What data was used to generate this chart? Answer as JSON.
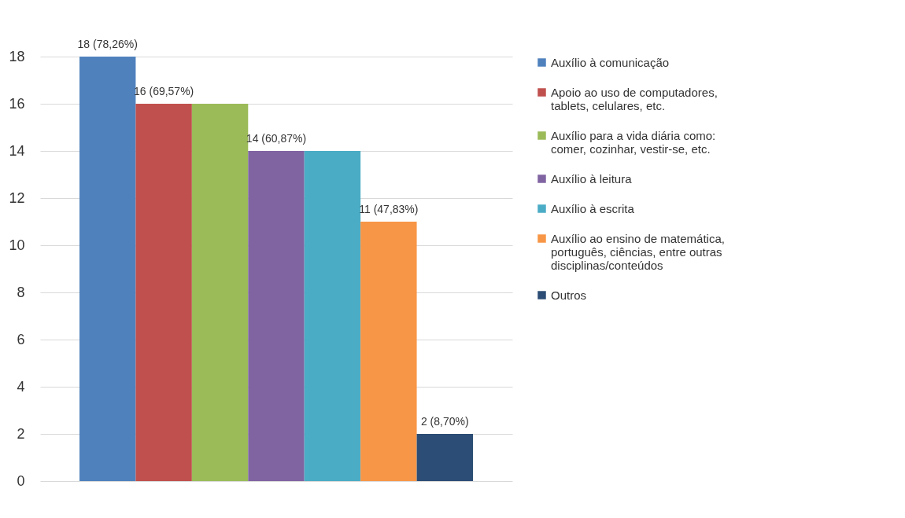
{
  "chart_data": {
    "type": "bar",
    "categories": [
      null
    ],
    "series": [
      {
        "name": "Auxílio à comunicação",
        "color": "#4f81bd",
        "values": [
          18
        ],
        "value_labels": [
          "18 (78,26%)"
        ]
      },
      {
        "name": "Apoio ao uso de computadores, tablets, celulares, etc.",
        "color": "#c0504d",
        "values": [
          16
        ],
        "value_labels": [
          "16 (69,57%)"
        ]
      },
      {
        "name": "Auxílio para a vida diária como: comer, cozinhar, vestir-se, etc.",
        "color": "#9bbb59",
        "values": [
          16
        ],
        "value_labels": [
          null
        ]
      },
      {
        "name": "Auxílio à leitura",
        "color": "#8064a2",
        "values": [
          14
        ],
        "value_labels": [
          "14 (60,87%)"
        ]
      },
      {
        "name": "Auxílio à escrita",
        "color": "#4bacc6",
        "values": [
          14
        ],
        "value_labels": [
          null
        ]
      },
      {
        "name": "Auxílio ao ensino de matemática, português, ciências, entre outras disciplinas/conteúdos",
        "color": "#f79646",
        "values": [
          11
        ],
        "value_labels": [
          "11 (47,83%)"
        ]
      },
      {
        "name": "Outros",
        "color": "#2c4d75",
        "values": [
          2
        ],
        "value_labels": [
          "2 (8,70%)"
        ]
      }
    ],
    "ylim": [
      0,
      18
    ],
    "yticks": [
      0,
      2,
      4,
      6,
      8,
      10,
      12,
      14,
      16,
      18
    ],
    "grid": "y",
    "legend": "right",
    "tick_labels": "y"
  }
}
